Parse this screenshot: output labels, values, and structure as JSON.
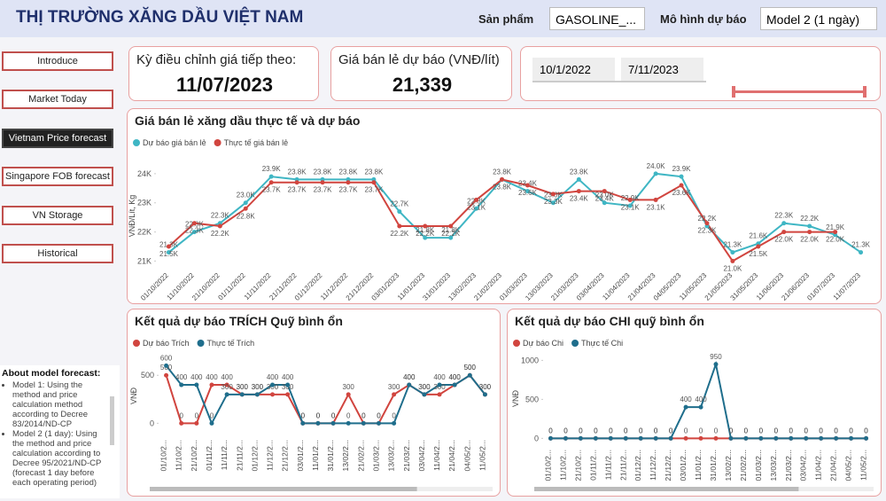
{
  "header": {
    "title": "THỊ TRƯỜNG XĂNG DẦU VIỆT NAM",
    "product_label": "Sản phẩm",
    "product_value": "GASOLINE_...",
    "model_label": "Mô hình dự báo",
    "model_value": "Model 2 (1 ngày)"
  },
  "nav": [
    "Introduce",
    "Market Today",
    "Vietnam Price forecast",
    "Singapore FOB forecast",
    "VN Storage",
    "Historical"
  ],
  "cards": {
    "next_adjust": {
      "label": "Kỳ điều chỉnh giá tiếp theo:",
      "value": "11/07/2023"
    },
    "forecast_price": {
      "label": "Giá bán lẻ dự báo (VNĐ/lít)",
      "value": "21,339"
    }
  },
  "date_range": {
    "start": "10/1/2022",
    "end": "7/11/2023"
  },
  "about": {
    "title": "About model forecast:",
    "items": [
      "Model 1: Using the method and price calculation method according to Decree 83/2014/ND-CP",
      "Model 2 (1 day): Using the method and price calculation according to Decree 95/2021/ND-CP (forecast 1 day before each operating period)"
    ]
  },
  "chart_data": [
    {
      "type": "line",
      "title": "Giá bán lẻ xăng dầu thực tế và dự báo",
      "y_label": "VNĐ/Lít, Kg",
      "categories": [
        "01/10/2022",
        "11/10/2022",
        "21/10/2022",
        "01/11/2022",
        "11/11/2022",
        "21/11/2022",
        "01/12/2022",
        "11/12/2022",
        "21/12/2022",
        "03/01/2023",
        "11/01/2023",
        "31/01/2023",
        "13/02/2023",
        "21/02/2023",
        "01/03/2023",
        "13/03/2023",
        "21/03/2023",
        "03/04/2023",
        "11/04/2023",
        "21/04/2023",
        "04/05/2023",
        "11/05/2023",
        "21/05/2023",
        "31/05/2023",
        "11/06/2023",
        "21/06/2023",
        "01/07/2023",
        "11/07/2023"
      ],
      "series": [
        {
          "name": "Dự báo giá bán lẻ",
          "color": "#3fb6c4",
          "values": [
            21300,
            22000,
            22300,
            23000,
            23900,
            23800,
            23800,
            23800,
            23800,
            22700,
            21800,
            21800,
            22800,
            23800,
            23400,
            23000,
            23800,
            23000,
            22900,
            24000,
            23900,
            22200,
            21300,
            21600,
            22300,
            22200,
            21900,
            21300
          ],
          "value_labels": [
            "21.3K",
            "22.0K",
            "22.3K",
            "23.0K",
            "23.9K",
            "23.8K",
            "23.8K",
            "23.8K",
            "23.8K",
            "22.7K",
            "21.8K",
            "21.8K",
            "22.8K",
            "23.8K",
            "23.4K",
            "23.0K",
            "23.8K",
            "23.0K",
            "22.9K",
            "24.0K",
            "23.9K",
            "22.2K",
            "21.3K",
            "21.6K",
            "22.3K",
            "22.2K",
            "21.9K",
            "21.3K"
          ]
        },
        {
          "name": "Thực tế giá bán lẻ",
          "color": "#d1453f",
          "values": [
            21500,
            22300,
            22200,
            22800,
            23700,
            23700,
            23700,
            23700,
            23700,
            22200,
            22200,
            22200,
            23100,
            23800,
            23600,
            23300,
            23400,
            23400,
            23100,
            23100,
            23600,
            22300,
            21000,
            21500,
            22000,
            22000,
            22000,
            null
          ],
          "value_labels": [
            "21.5K",
            "22.3K",
            "22.2K",
            "22.8K",
            "23.7K",
            "23.7K",
            "23.7K",
            "23.7K",
            "23.7K",
            "22.2K",
            "22.2K",
            "22.2K",
            "23.1K",
            "23.8K",
            "23.6K",
            "23.3K",
            "23.4K",
            "23.4K",
            "23.1K",
            "23.1K",
            "23.6K",
            "22.3K",
            "21.0K",
            "21.5K",
            "22.0K",
            "22.0K",
            "22.0K",
            null
          ]
        }
      ],
      "ylim": [
        20800,
        24300
      ],
      "yticks": [
        {
          "value": 21000,
          "label": "21K"
        },
        {
          "value": 22000,
          "label": "22K"
        },
        {
          "value": 23000,
          "label": "23K"
        },
        {
          "value": 24000,
          "label": "24K"
        }
      ]
    },
    {
      "type": "line",
      "title": "Kết quả dự báo TRÍCH Quỹ bình ổn",
      "y_label": "VNĐ",
      "categories": [
        "01/10/2...",
        "11/10/2...",
        "21/10/2...",
        "01/11/2...",
        "11/11/2...",
        "21/11/2...",
        "01/12/2...",
        "11/12/2...",
        "21/12/2...",
        "03/01/2...",
        "11/01/2...",
        "31/01/2...",
        "13/02/2...",
        "21/02/2...",
        "01/03/2...",
        "13/03/2...",
        "21/03/2...",
        "03/04/2...",
        "11/04/2...",
        "21/04/2...",
        "04/05/2...",
        "11/05/2..."
      ],
      "series": [
        {
          "name": "Dự báo Trích",
          "color": "#d1453f",
          "values": [
            500,
            0,
            0,
            400,
            400,
            300,
            300,
            300,
            300,
            0,
            0,
            0,
            300,
            0,
            0,
            300,
            400,
            300,
            300,
            400,
            500,
            300
          ]
        },
        {
          "name": "Thực tế Trích",
          "color": "#1f6e8c",
          "values": [
            600,
            400,
            400,
            0,
            300,
            300,
            300,
            400,
            400,
            0,
            0,
            0,
            0,
            0,
            0,
            0,
            400,
            300,
            400,
            400,
            500,
            300
          ]
        }
      ],
      "ylim": [
        -80,
        650
      ],
      "yticks": [
        0,
        500
      ]
    },
    {
      "type": "line",
      "title": "Kết quả dự báo CHI quỹ bình ổn",
      "y_label": "VNĐ",
      "categories": [
        "01/10/2...",
        "11/10/2...",
        "21/10/2...",
        "01/11/2...",
        "11/11/2...",
        "21/11/2...",
        "01/12/2...",
        "11/12/2...",
        "21/12/2...",
        "03/01/2...",
        "11/01/2...",
        "31/01/2...",
        "13/02/2...",
        "21/02/2...",
        "01/03/2...",
        "13/03/2...",
        "21/03/2...",
        "03/04/2...",
        "11/04/2...",
        "21/04/2...",
        "04/05/2...",
        "11/05/2..."
      ],
      "series": [
        {
          "name": "Dự báo Chi",
          "color": "#d1453f",
          "values": [
            0,
            0,
            0,
            0,
            0,
            0,
            0,
            0,
            0,
            0,
            0,
            0,
            0,
            0,
            0,
            0,
            0,
            0,
            0,
            0,
            0,
            0
          ]
        },
        {
          "name": "Thực tế Chi",
          "color": "#1f6e8c",
          "values": [
            0,
            0,
            0,
            0,
            0,
            0,
            0,
            0,
            0,
            400,
            400,
            950,
            0,
            0,
            0,
            0,
            0,
            0,
            0,
            0,
            0,
            0
          ]
        }
      ],
      "ylim": [
        -30,
        1050
      ],
      "yticks": [
        0,
        500,
        1000
      ]
    }
  ]
}
